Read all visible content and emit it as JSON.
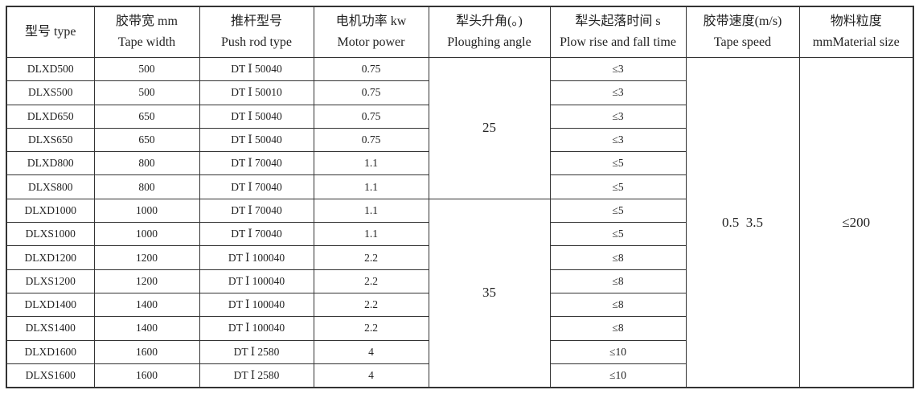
{
  "table": {
    "header": [
      [
        "型号 type"
      ],
      [
        "胶带宽 mm",
        "Tape width"
      ],
      [
        "推杆型号",
        "Push rod type"
      ],
      [
        "电机功率 kw",
        "Motor power"
      ],
      [
        "犁头升角(。)",
        "Ploughing angle"
      ],
      [
        "犁头起落时间 s",
        "Plow rise and fall time"
      ],
      [
        "胶带速度(m/s)",
        "Tape speed"
      ],
      [
        "物料粒度",
        "mmMaterial size"
      ]
    ],
    "rows": [
      [
        "DLXD500",
        "500",
        "DT Ⅰ 50040",
        "0.75",
        "≤3"
      ],
      [
        "DLXS500",
        "500",
        "DT Ⅰ 50010",
        "0.75",
        "≤3"
      ],
      [
        "DLXD650",
        "650",
        "DT Ⅰ 50040",
        "0.75",
        "≤3"
      ],
      [
        "DLXS650",
        "650",
        "DT Ⅰ 50040",
        "0.75",
        "≤3"
      ],
      [
        "DLXD800",
        "800",
        "DT Ⅰ 70040",
        "1.1",
        "≤5"
      ],
      [
        "DLXS800",
        "800",
        "DT Ⅰ 70040",
        "1.1",
        "≤5"
      ],
      [
        "DLXD1000",
        "1000",
        "DT Ⅰ 70040",
        "1.1",
        "≤5"
      ],
      [
        "DLXS1000",
        "1000",
        "DT Ⅰ 70040",
        "1.1",
        "≤5"
      ],
      [
        "DLXD1200",
        "1200",
        "DT Ⅰ 100040",
        "2.2",
        "≤8"
      ],
      [
        "DLXS1200",
        "1200",
        "DT Ⅰ 100040",
        "2.2",
        "≤8"
      ],
      [
        "DLXD1400",
        "1400",
        "DT Ⅰ 100040",
        "2.2",
        "≤8"
      ],
      [
        "DLXS1400",
        "1400",
        "DT Ⅰ 100040",
        "2.2",
        "≤8"
      ],
      [
        "DLXD1600",
        "1600",
        "DT Ⅰ 2580",
        "4",
        "≤10"
      ],
      [
        "DLXS1600",
        "1600",
        "DT Ⅰ 2580",
        "4",
        "≤10"
      ]
    ],
    "angle_groups": [
      "25",
      "35"
    ],
    "tape_speed": "0.5  3.5",
    "material_size": "≤200"
  }
}
